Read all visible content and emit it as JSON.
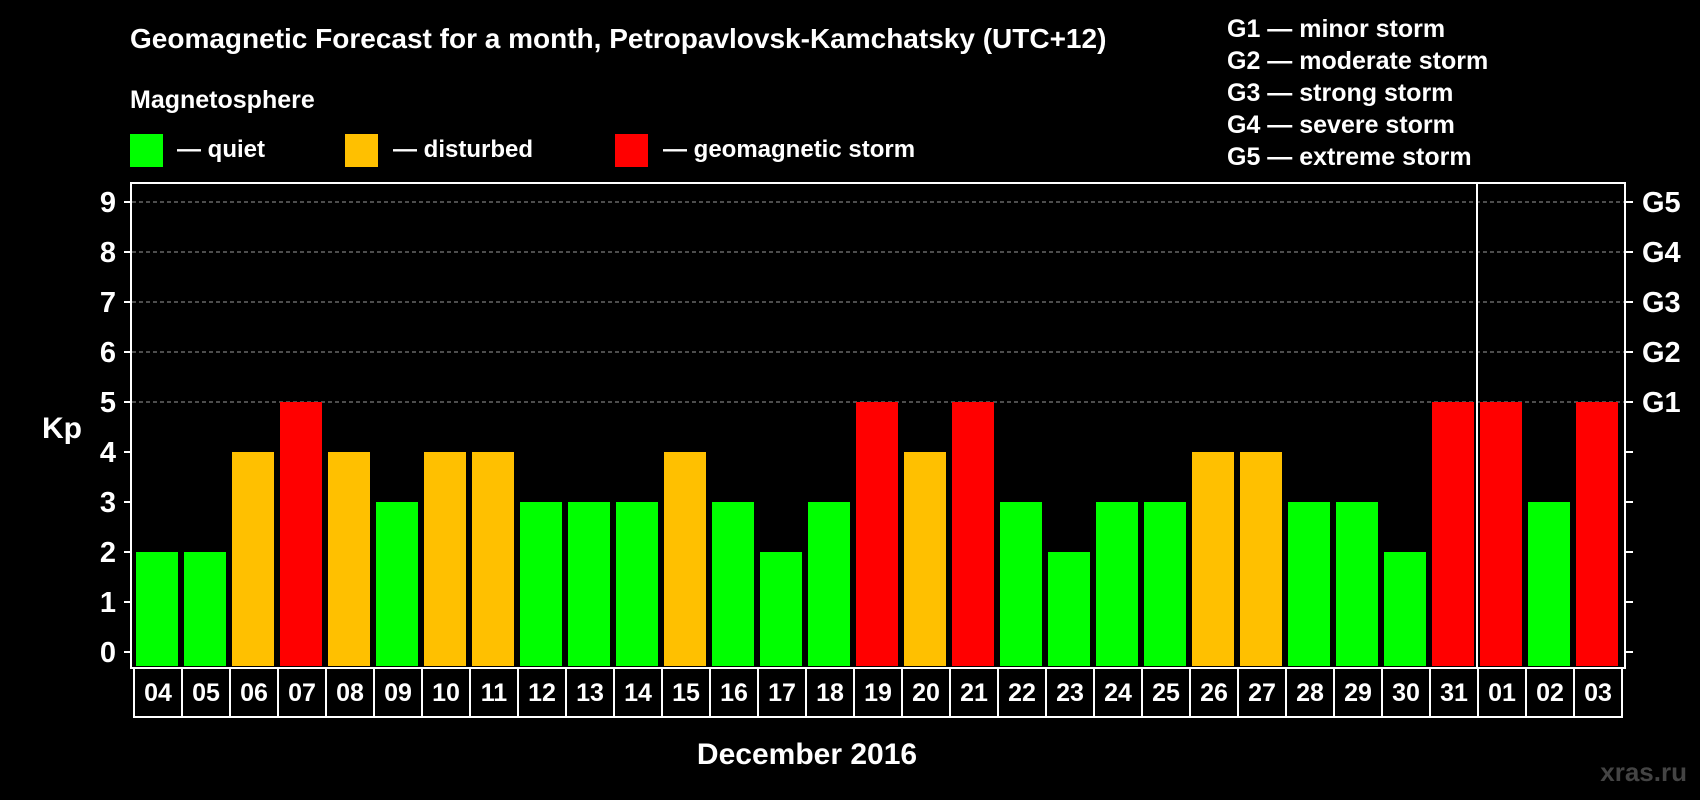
{
  "title": "Geomagnetic Forecast for a month, Petropavlovsk-Kamchatsky (UTC+12)",
  "magnetosphere_heading": "Magnetosphere",
  "legend": [
    {
      "label": "— quiet",
      "color": "#00ff00"
    },
    {
      "label": "— disturbed",
      "color": "#ffc000"
    },
    {
      "label": "— geomagnetic storm",
      "color": "#ff0000"
    }
  ],
  "storm_scale": [
    "G1 — minor storm",
    "G2 — moderate storm",
    "G3 — strong storm",
    "G4 — severe storm",
    "G5 — extreme storm"
  ],
  "watermark": "xras.ru",
  "colors": {
    "quiet": "#00ff00",
    "disturbed": "#ffc000",
    "storm": "#ff0000",
    "background": "#000000",
    "foreground": "#ffffff"
  },
  "chart_data": {
    "type": "bar",
    "title": "Geomagnetic Forecast for a month, Petropavlovsk-Kamchatsky (UTC+12)",
    "ylabel": "Kp",
    "xlabel": "December 2016",
    "ylim": [
      0,
      9
    ],
    "y_ticks": [
      0,
      1,
      2,
      3,
      4,
      5,
      6,
      7,
      8,
      9
    ],
    "right_axis_labels": [
      {
        "kp": 5,
        "label": "G1"
      },
      {
        "kp": 6,
        "label": "G2"
      },
      {
        "kp": 7,
        "label": "G3"
      },
      {
        "kp": 8,
        "label": "G4"
      },
      {
        "kp": 9,
        "label": "G5"
      }
    ],
    "gridlines_at": [
      5,
      6,
      7,
      8,
      9
    ],
    "month_divider_after": "31",
    "categories": [
      "04",
      "05",
      "06",
      "07",
      "08",
      "09",
      "10",
      "11",
      "12",
      "13",
      "14",
      "15",
      "16",
      "17",
      "18",
      "19",
      "20",
      "21",
      "22",
      "23",
      "24",
      "25",
      "26",
      "27",
      "28",
      "29",
      "30",
      "31",
      "01",
      "02",
      "03"
    ],
    "values": [
      2,
      2,
      4,
      5,
      4,
      3,
      4,
      4,
      3,
      3,
      3,
      4,
      3,
      2,
      3,
      5,
      4,
      5,
      3,
      2,
      3,
      3,
      4,
      4,
      3,
      3,
      2,
      5,
      5,
      3,
      5
    ],
    "status_rule": {
      "quiet": "Kp <= 3",
      "disturbed": "Kp = 4",
      "storm": "Kp >= 5"
    }
  }
}
